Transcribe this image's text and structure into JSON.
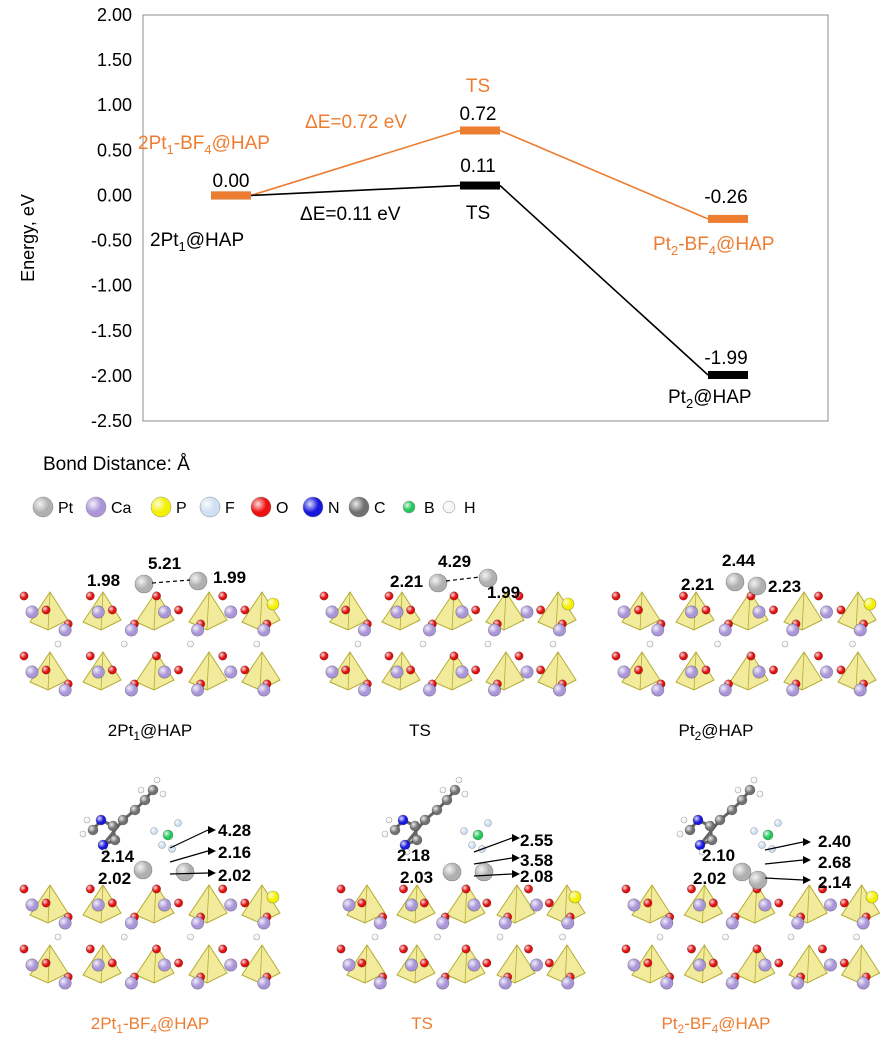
{
  "chart_data": {
    "type": "line",
    "ylabel": "Energy, eV",
    "ylim": [
      -2.5,
      2.0
    ],
    "y_ticks": [
      "2.00",
      "1.50",
      "1.00",
      "0.50",
      "0.00",
      "-0.50",
      "-1.00",
      "-1.50",
      "-2.00",
      "-2.50"
    ],
    "x": [
      1,
      2,
      3
    ],
    "series": [
      {
        "color": "#000000",
        "values": [
          0.0,
          0.11,
          -1.99
        ],
        "value_labels": [
          "0.00",
          "0.11",
          "-1.99"
        ],
        "state_labels": [
          "2Pt1@HAP",
          "TS",
          "Pt2@HAP"
        ]
      },
      {
        "color": "#ED7D31",
        "values": [
          0.0,
          0.72,
          -0.26
        ],
        "value_labels": [
          "0.00",
          "0.72",
          "-0.26"
        ],
        "state_labels": [
          "2Pt1-BF4@HAP",
          "TS",
          "Pt2-BF4@HAP"
        ]
      }
    ],
    "barrier_labels": [
      "ΔE=0.11 eV",
      "ΔE=0.72 eV"
    ]
  },
  "structures": {
    "header": "Bond Distance: Å",
    "legend": [
      {
        "label": "Pt",
        "color": "#b0b0b0",
        "icon": "pt-atom-icon"
      },
      {
        "label": "Ca",
        "color": "#a995d8",
        "icon": "ca-atom-icon"
      },
      {
        "label": "P",
        "color": "#f4f000",
        "icon": "p-atom-icon"
      },
      {
        "label": "F",
        "color": "#cfe0f4",
        "icon": "f-atom-icon"
      },
      {
        "label": "O",
        "color": "#ee1111",
        "icon": "o-atom-icon"
      },
      {
        "label": "N",
        "color": "#1717dd",
        "icon": "n-atom-icon"
      },
      {
        "label": "C",
        "color": "#707070",
        "icon": "c-atom-icon"
      },
      {
        "label": "B",
        "color": "#22c75a",
        "icon": "b-atom-icon"
      },
      {
        "label": "H",
        "color": "#f4f4f4",
        "icon": "h-atom-icon"
      }
    ],
    "top_row": [
      {
        "caption": "2Pt1@HAP",
        "distances": [
          "1.98",
          "5.21",
          "1.99"
        ]
      },
      {
        "caption": "TS",
        "distances": [
          "2.21",
          "4.29",
          "1.99"
        ]
      },
      {
        "caption": "Pt2@HAP",
        "distances": [
          "2.44",
          "2.21",
          "2.23"
        ]
      }
    ],
    "bottom_row": [
      {
        "caption": "2Pt1-BF4@HAP",
        "distances": [
          "4.28",
          "2.16",
          "2.14",
          "2.02",
          "2.02"
        ]
      },
      {
        "caption": "TS",
        "distances": [
          "2.55",
          "3.58",
          "2.18",
          "2.03",
          "2.08"
        ]
      },
      {
        "caption": "Pt2-BF4@HAP",
        "distances": [
          "2.40",
          "2.68",
          "2.10",
          "2.02",
          "2.14"
        ]
      }
    ]
  }
}
